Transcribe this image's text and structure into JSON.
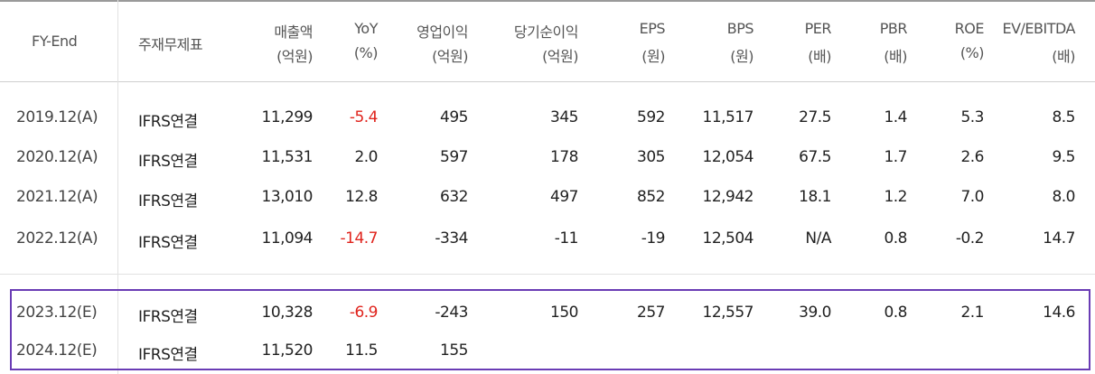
{
  "columns": [
    {
      "line1": "FY-End",
      "line2": ""
    },
    {
      "line1": "주재무제표",
      "line2": ""
    },
    {
      "line1": "매출액",
      "line2": "(억원)"
    },
    {
      "line1": "YoY",
      "line2": "(%)"
    },
    {
      "line1": "영업이익",
      "line2": "(억원)"
    },
    {
      "line1": "당기순이익",
      "line2": "(억원)"
    },
    {
      "line1": "EPS",
      "line2": "(원)"
    },
    {
      "line1": "BPS",
      "line2": "(원)"
    },
    {
      "line1": "PER",
      "line2": "(배)"
    },
    {
      "line1": "PBR",
      "line2": "(배)"
    },
    {
      "line1": "ROE",
      "line2": "(%)"
    },
    {
      "line1": "EV/EBITDA",
      "line2": "(배)"
    }
  ],
  "rows": [
    {
      "fy": "2019.12(A)",
      "basis": "IFRS연결",
      "sales": "11,299",
      "yoy": "-5.4",
      "op": "495",
      "net": "345",
      "eps": "592",
      "bps": "11,517",
      "per": "27.5",
      "pbr": "1.4",
      "roe": "5.3",
      "ev": "8.5"
    },
    {
      "fy": "2020.12(A)",
      "basis": "IFRS연결",
      "sales": "11,531",
      "yoy": "2.0",
      "op": "597",
      "net": "178",
      "eps": "305",
      "bps": "12,054",
      "per": "67.5",
      "pbr": "1.7",
      "roe": "2.6",
      "ev": "9.5"
    },
    {
      "fy": "2021.12(A)",
      "basis": "IFRS연결",
      "sales": "13,010",
      "yoy": "12.8",
      "op": "632",
      "net": "497",
      "eps": "852",
      "bps": "12,942",
      "per": "18.1",
      "pbr": "1.2",
      "roe": "7.0",
      "ev": "8.0"
    },
    {
      "fy": "2022.12(A)",
      "basis": "IFRS연결",
      "sales": "11,094",
      "yoy": "-14.7",
      "op": "-334",
      "net": "-11",
      "eps": "-19",
      "bps": "12,504",
      "per": "N/A",
      "pbr": "0.8",
      "roe": "-0.2",
      "ev": "14.7"
    },
    {
      "fy": "2023.12(E)",
      "basis": "IFRS연결",
      "sales": "10,328",
      "yoy": "-6.9",
      "op": "-243",
      "net": "150",
      "eps": "257",
      "bps": "12,557",
      "per": "39.0",
      "pbr": "0.8",
      "roe": "2.1",
      "ev": "14.6"
    },
    {
      "fy": "2024.12(E)",
      "basis": "IFRS연결",
      "sales": "11,520",
      "yoy": "11.5",
      "op": "155",
      "net": "",
      "eps": "",
      "bps": "",
      "per": "",
      "pbr": "",
      "roe": "",
      "ev": ""
    }
  ],
  "colors": {
    "negative": "#e0241d",
    "highlight_border": "#6a3cb5"
  }
}
